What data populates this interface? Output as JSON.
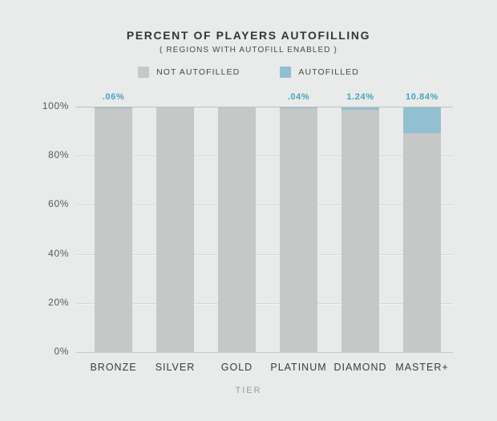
{
  "title": "PERCENT OF PLAYERS AUTOFILLING",
  "subtitle": "( REGIONS WITH AUTOFILL ENABLED )",
  "legend": [
    {
      "id": "not-autofilled",
      "label": "NOT AUTOFILLED",
      "color": "#c6c7c7"
    },
    {
      "id": "autofilled",
      "label": "AUTOFILLED",
      "color": "#92bfd1"
    }
  ],
  "chart_data": {
    "type": "bar",
    "stacked": true,
    "categories": [
      "BRONZE",
      "SILVER",
      "GOLD",
      "PLATINUM",
      "DIAMOND",
      "MASTER+"
    ],
    "series": [
      {
        "name": "NOT AUTOFILLED",
        "color": "#c6c7c7",
        "values": [
          99.94,
          100,
          100,
          99.96,
          98.76,
          89.16
        ]
      },
      {
        "name": "AUTOFILLED",
        "color": "#92bfd1",
        "values": [
          0.06,
          0,
          0,
          0.04,
          1.24,
          10.84
        ]
      }
    ],
    "bar_labels": [
      ".06%",
      "",
      "",
      ".04%",
      "1.24%",
      "10.84%"
    ],
    "xlabel": "TIER",
    "ylabel": "",
    "y_ticks": [
      "100%",
      "80%",
      "60%",
      "40%",
      "20%",
      "0%"
    ],
    "ylim": [
      0,
      100
    ],
    "grid": true,
    "legend_position": "top"
  },
  "colors": {
    "background": "#e9eaea",
    "bar_gray": "#c6c7c7",
    "bar_blue": "#92bfd1",
    "value_label": "#45a3c0",
    "title_text": "#333637",
    "axis_text": "#55585a",
    "category_text": "#393c3d",
    "tier_text": "#9b9d9e",
    "gridline": "#d6d8d8"
  }
}
